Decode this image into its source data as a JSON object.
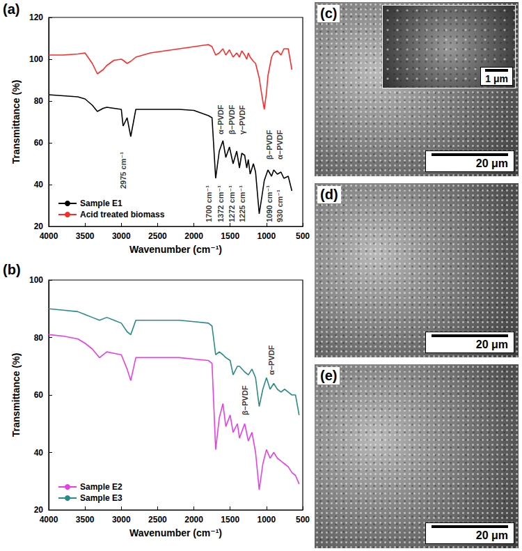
{
  "chart_data": [
    {
      "panel": "(a)",
      "type": "line",
      "x_label": "Wavenumber (cm⁻¹)",
      "y_label": "Transmittance (%)",
      "x": [
        4000,
        3800,
        3600,
        3500,
        3400,
        3330,
        3250,
        3200,
        3100,
        3000,
        2975,
        2920,
        2870,
        2800,
        2600,
        2400,
        2200,
        2000,
        1800,
        1750,
        1700,
        1650,
        1600,
        1560,
        1510,
        1460,
        1410,
        1372,
        1340,
        1300,
        1272,
        1250,
        1225,
        1180,
        1150,
        1100,
        1060,
        1030,
        1000,
        980,
        930,
        900,
        850,
        800,
        760,
        700,
        650
      ],
      "series": [
        {
          "name": "Sample E1",
          "color": "#000000",
          "values": [
            83,
            82.5,
            82,
            81,
            78,
            75,
            76.5,
            77,
            76.5,
            76,
            68,
            72,
            63,
            76,
            76,
            76,
            76,
            75.5,
            73,
            72,
            43,
            56,
            61,
            53,
            58,
            50,
            56,
            48,
            55,
            54,
            48,
            52,
            45,
            50,
            46,
            26,
            35,
            42,
            45,
            47,
            44,
            47,
            45,
            46,
            43,
            44,
            37
          ]
        },
        {
          "name": "Acid treated biomass",
          "color": "#ff2a2a",
          "values": [
            102,
            102,
            102.5,
            103,
            98,
            93,
            95,
            97,
            99.5,
            100,
            99.5,
            98,
            99,
            101,
            103,
            104,
            105,
            106,
            107,
            106,
            102,
            103,
            105,
            102,
            104.5,
            101,
            103,
            101,
            104,
            102,
            100,
            103,
            101,
            99,
            98,
            91,
            82,
            76,
            84,
            92,
            101,
            103,
            104,
            102,
            105,
            105,
            95
          ]
        }
      ],
      "xlim": [
        4000,
        500
      ],
      "xticks": [
        4000,
        3500,
        3000,
        2500,
        2000,
        1500,
        1000,
        500
      ],
      "ylim": [
        20,
        120
      ],
      "yticks": [
        20,
        40,
        60,
        80,
        100,
        120
      ],
      "grid": false,
      "legend": "lower left",
      "annotations": [
        {
          "text": "2975 cm⁻¹",
          "x": 2975,
          "y": 38
        },
        {
          "text": "1700 cm⁻¹",
          "x": 1790,
          "y": 22
        },
        {
          "text": "1372 cm⁻¹",
          "x": 1630,
          "y": 22
        },
        {
          "text": "1272 cm⁻¹",
          "x": 1480,
          "y": 22
        },
        {
          "text": "1225 cm⁻¹",
          "x": 1330,
          "y": 22
        },
        {
          "text": "1090 cm⁻¹",
          "x": 960,
          "y": 22
        },
        {
          "text": "930 cm⁻¹",
          "x": 820,
          "y": 22
        },
        {
          "text": "α−PVDF",
          "x": 1630,
          "y": 64
        },
        {
          "text": "β−PVDF",
          "x": 1480,
          "y": 64
        },
        {
          "text": "γ−PVDF",
          "x": 1330,
          "y": 64
        },
        {
          "text": "β−PVDF",
          "x": 960,
          "y": 52
        },
        {
          "text": "α−PVDF",
          "x": 820,
          "y": 52
        }
      ]
    },
    {
      "panel": "(b)",
      "type": "line",
      "x_label": "Wavenumber (cm⁻¹)",
      "y_label": "Transmittance (%)",
      "x": [
        4000,
        3800,
        3600,
        3500,
        3400,
        3300,
        3200,
        3100,
        3000,
        2920,
        2870,
        2800,
        2600,
        2400,
        2200,
        2000,
        1800,
        1750,
        1700,
        1650,
        1600,
        1560,
        1500,
        1460,
        1400,
        1372,
        1300,
        1250,
        1200,
        1150,
        1100,
        1050,
        1000,
        950,
        900,
        850,
        800,
        750,
        700,
        650,
        600,
        550
      ],
      "series": [
        {
          "name": "Sample E2",
          "color": "#e83ee8",
          "values": [
            81,
            80.5,
            79.5,
            78,
            76,
            73,
            75,
            74.5,
            74,
            69,
            65,
            73,
            73,
            73,
            73,
            72.5,
            72,
            71,
            41,
            52,
            57,
            49,
            53,
            47,
            50,
            45,
            50,
            44,
            47,
            40,
            27,
            36,
            41,
            38,
            40,
            38,
            37,
            36,
            35,
            33,
            32,
            29
          ]
        },
        {
          "name": "Sample E3",
          "color": "#2a8a8a",
          "values": [
            90,
            89.5,
            89,
            88,
            87,
            86,
            87,
            86,
            85,
            82,
            81,
            86,
            86,
            86,
            86,
            85.5,
            85,
            84,
            74,
            75,
            74,
            73,
            72,
            67,
            70,
            70,
            68,
            67,
            69,
            66,
            56,
            62,
            66,
            62,
            64,
            62,
            61,
            62,
            61,
            60,
            60,
            53
          ]
        }
      ],
      "xlim": [
        4000,
        500
      ],
      "xticks": [
        4000,
        3500,
        3000,
        2500,
        2000,
        1500,
        1000,
        500
      ],
      "ylim": [
        20,
        100
      ],
      "yticks": [
        20,
        40,
        60,
        80,
        100
      ],
      "grid": false,
      "legend": "lower left",
      "annotations": [
        {
          "text": "β−PVDF",
          "x": 1300,
          "y": 53
        },
        {
          "text": "α−PVDF",
          "x": 930,
          "y": 67
        }
      ]
    }
  ],
  "images": [
    {
      "panel": "(c)",
      "scale_bar": "20 μm",
      "inset_scale_bar": "1 μm"
    },
    {
      "panel": "(d)",
      "scale_bar": "20 μm"
    },
    {
      "panel": "(e)",
      "scale_bar": "20 μm"
    }
  ]
}
